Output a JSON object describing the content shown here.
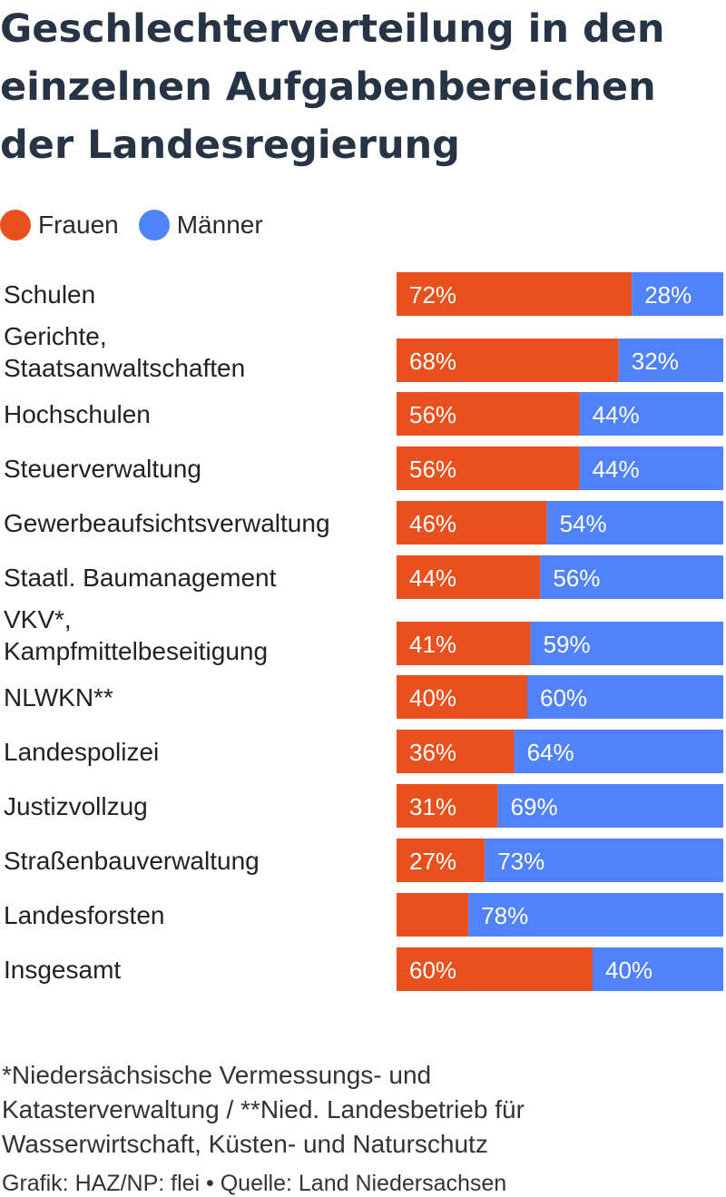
{
  "title": "Geschlechterverteilung in den einzelnen Aufgabenbereichen der Landesregierung",
  "colors": {
    "frauen": "#e8501d",
    "maenner": "#5083fb"
  },
  "chart_data": {
    "type": "bar",
    "orientation": "horizontal",
    "stacked": true,
    "percent_stacked": true,
    "legend": [
      "Frauen",
      "Männer"
    ],
    "legend_position": "top-left",
    "categories": [
      [
        "Schulen"
      ],
      [
        "Gerichte,",
        "Staatsanwaltschaften"
      ],
      [
        "Hochschulen"
      ],
      [
        "Steuerverwaltung"
      ],
      [
        "Gewerbeaufsichtsverwaltung"
      ],
      [
        "Staatl. Baumanagement"
      ],
      [
        "VKV*,",
        "Kampfmittelbeseitigung"
      ],
      [
        "NLWKN**"
      ],
      [
        "Landespolizei"
      ],
      [
        "Justizvollzug"
      ],
      [
        "Straßenbauverwaltung"
      ],
      [
        "Landesforsten"
      ],
      [
        "Insgesamt"
      ]
    ],
    "series": [
      {
        "name": "Frauen",
        "values": [
          72,
          68,
          56,
          56,
          46,
          44,
          41,
          40,
          36,
          31,
          27,
          22,
          60
        ],
        "labels": [
          "72%",
          "68%",
          "56%",
          "56%",
          "46%",
          "44%",
          "41%",
          "40%",
          "36%",
          "31%",
          "27%",
          "",
          "60%"
        ]
      },
      {
        "name": "Männer",
        "values": [
          28,
          32,
          44,
          44,
          54,
          56,
          59,
          60,
          64,
          69,
          73,
          78,
          40
        ],
        "labels": [
          "28%",
          "32%",
          "44%",
          "44%",
          "54%",
          "56%",
          "59%",
          "60%",
          "64%",
          "69%",
          "73%",
          "78%",
          "40%"
        ]
      }
    ],
    "xlim": [
      0,
      100
    ],
    "grid": false
  },
  "footnote": {
    "lines": [
      "*Niedersächsische Vermessungs- und",
      "Katasterverwaltung / **Nied. Landesbetrieb für",
      "Wasserwirtschaft, Küsten- und Naturschutz"
    ]
  },
  "source": "Grafik: HAZ/NP: flei • Quelle: Land Niedersachsen"
}
